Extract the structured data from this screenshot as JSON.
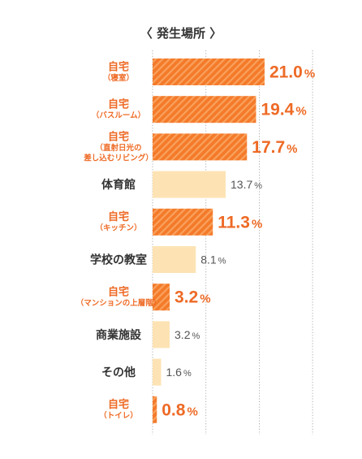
{
  "chart_data": {
    "type": "bar",
    "orientation": "horizontal",
    "title": "〈 発生場所 〉",
    "categories": [
      {
        "main": "自宅",
        "sub": [
          "（寝室）"
        ],
        "highlight": true
      },
      {
        "main": "自宅",
        "sub": [
          "（バスルーム）"
        ],
        "highlight": true
      },
      {
        "main": "自宅",
        "sub": [
          "（直射日光の",
          "差し込むリビング）"
        ],
        "highlight": true
      },
      {
        "main": "体育館",
        "sub": [],
        "highlight": false
      },
      {
        "main": "自宅",
        "sub": [
          "（キッチン）"
        ],
        "highlight": true
      },
      {
        "main": "学校の教室",
        "sub": [],
        "highlight": false
      },
      {
        "main": "自宅",
        "sub": [
          "（マンションの上層階）"
        ],
        "highlight": true
      },
      {
        "main": "商業施設",
        "sub": [],
        "highlight": false
      },
      {
        "main": "その他",
        "sub": [],
        "highlight": false
      },
      {
        "main": "自宅",
        "sub": [
          "（トイレ）"
        ],
        "highlight": true
      }
    ],
    "values": [
      21.0,
      19.4,
      17.7,
      13.7,
      11.3,
      8.1,
      3.2,
      3.2,
      1.6,
      0.8
    ],
    "value_labels": [
      "21.0",
      "19.4",
      "17.7",
      "13.7",
      "11.3",
      "8.1",
      "3.2",
      "3.2",
      "1.6",
      "0.8"
    ],
    "unit": "%",
    "xlim": [
      0,
      30
    ],
    "grid": true,
    "colors": {
      "highlight_bar": "#f47a2a",
      "highlight_stripe": "#f9a15c",
      "normal_bar": "#fde3b4",
      "highlight_text": "#ee6a25",
      "normal_text": "#333333",
      "grid": "#999999"
    }
  }
}
